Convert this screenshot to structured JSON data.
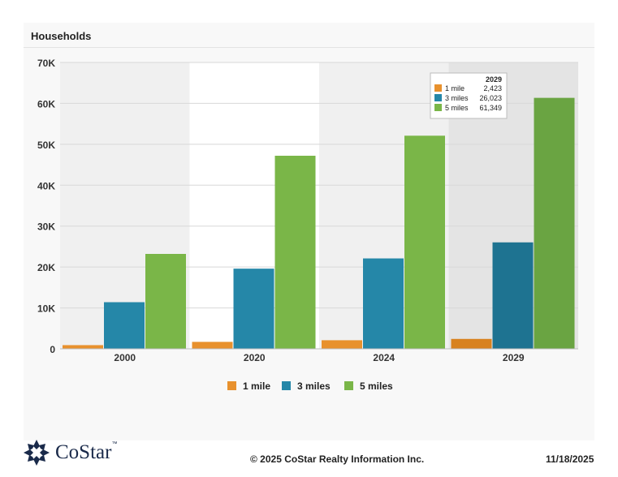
{
  "title": "Households",
  "chart_data": {
    "type": "bar",
    "title": "Households",
    "categories": [
      "2000",
      "2020",
      "2024",
      "2029"
    ],
    "series": [
      {
        "name": "1 mile",
        "color": "#e8912d",
        "values": [
          900,
          1700,
          2100,
          2423
        ]
      },
      {
        "name": "3 miles",
        "color": "#2587a8",
        "values": [
          11400,
          19600,
          22100,
          26023
        ]
      },
      {
        "name": "5 miles",
        "color": "#7ab648",
        "values": [
          23200,
          47200,
          52100,
          61349
        ]
      }
    ],
    "ylim": [
      0,
      70000
    ],
    "y_ticks": [
      "0",
      "10K",
      "20K",
      "30K",
      "40K",
      "50K",
      "60K",
      "70K"
    ],
    "grid": true,
    "legend_position": "bottom",
    "tooltip": {
      "header": "2029",
      "rows": [
        {
          "label": "1 mile",
          "value": "2,423"
        },
        {
          "label": "3 miles",
          "value": "26,023"
        },
        {
          "label": "5 miles",
          "value": "61,349"
        }
      ]
    }
  },
  "footer": {
    "logo": "CoStar",
    "logo_tm": "™",
    "copyright": "© 2025 CoStar Realty Information Inc.",
    "date": "11/18/2025"
  }
}
